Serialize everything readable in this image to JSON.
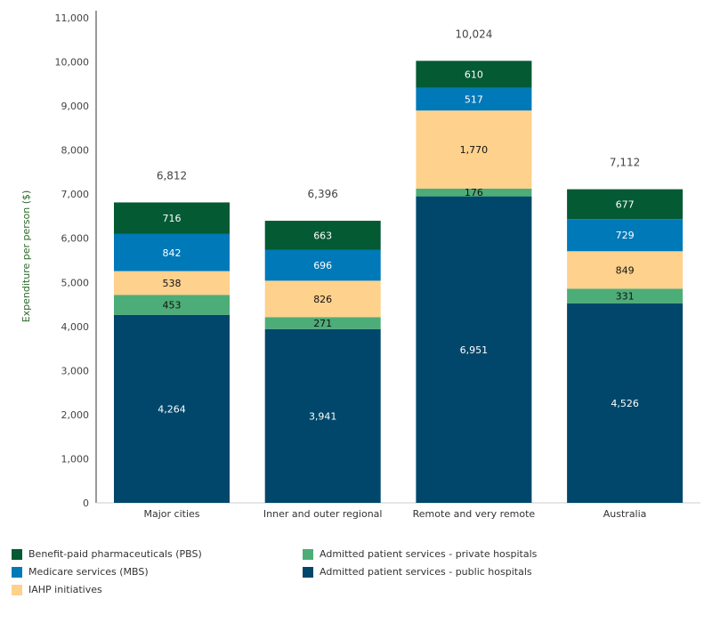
{
  "chart_data": {
    "type": "bar",
    "stacked": true,
    "title": "",
    "xlabel": "",
    "ylabel": "Expenditure per person ($)",
    "ylim": [
      0,
      11000
    ],
    "yticks": [
      0,
      1000,
      2000,
      3000,
      4000,
      5000,
      6000,
      7000,
      8000,
      9000,
      10000,
      11000
    ],
    "grid": false,
    "legend_position": "bottom",
    "categories": [
      "Major cities",
      "Inner and outer regional",
      "Remote and very remote",
      "Australia"
    ],
    "totals": [
      6812,
      6396,
      10024,
      7112
    ],
    "series": [
      {
        "name": "Admitted patient services - public hospitals",
        "color": "#00476B",
        "label_color": "#ffffff",
        "values": [
          4264,
          3941,
          6951,
          4526
        ]
      },
      {
        "name": "Admitted patient services - private hospitals",
        "color": "#4DAD78",
        "label_color": "#111111",
        "values": [
          453,
          271,
          176,
          331
        ]
      },
      {
        "name": "IAHP initiatives",
        "color": "#FED18C",
        "label_color": "#111111",
        "values": [
          538,
          826,
          1770,
          849
        ]
      },
      {
        "name": "Medicare services (MBS)",
        "color": "#0079B9",
        "label_color": "#ffffff",
        "values": [
          842,
          696,
          517,
          729
        ]
      },
      {
        "name": "Benefit-paid pharmaceuticals (PBS)",
        "color": "#045A33",
        "label_color": "#ffffff",
        "values": [
          716,
          663,
          610,
          677
        ]
      }
    ],
    "legend_order": [
      4,
      1,
      3,
      0,
      2
    ]
  }
}
